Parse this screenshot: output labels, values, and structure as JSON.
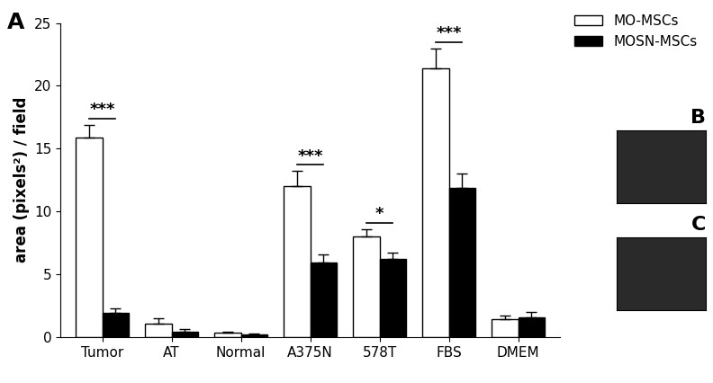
{
  "chart_data": {
    "type": "bar",
    "panel_label": "A",
    "y_label": "area (pixels²) / field",
    "categories": [
      "Tumor",
      "AT",
      "Normal",
      "A375N",
      "578T",
      "FBS",
      "DMEM"
    ],
    "series": [
      {
        "name": "MO-MSCs",
        "color": "#ffffff",
        "values": [
          15.9,
          1.1,
          0.35,
          12.0,
          8.0,
          21.4,
          1.4
        ],
        "error": [
          1.0,
          0.4,
          0.1,
          1.2,
          0.6,
          1.6,
          0.3
        ]
      },
      {
        "name": "MOSN-MSCs",
        "color": "#000000",
        "values": [
          1.9,
          0.45,
          0.2,
          5.9,
          6.2,
          11.9,
          1.6
        ],
        "error": [
          0.4,
          0.15,
          0.1,
          0.7,
          0.5,
          1.1,
          0.4
        ]
      }
    ],
    "significance": [
      {
        "category": "Tumor",
        "label": "***"
      },
      {
        "category": "A375N",
        "label": "***"
      },
      {
        "category": "578T",
        "label": "*"
      },
      {
        "category": "FBS",
        "label": "***"
      }
    ],
    "ylim": [
      0,
      25
    ],
    "yticks": [
      0,
      5,
      10,
      15,
      20,
      25
    ],
    "legend": "upper right",
    "grid": false
  },
  "images": [
    {
      "label": "B"
    },
    {
      "label": "C"
    }
  ]
}
